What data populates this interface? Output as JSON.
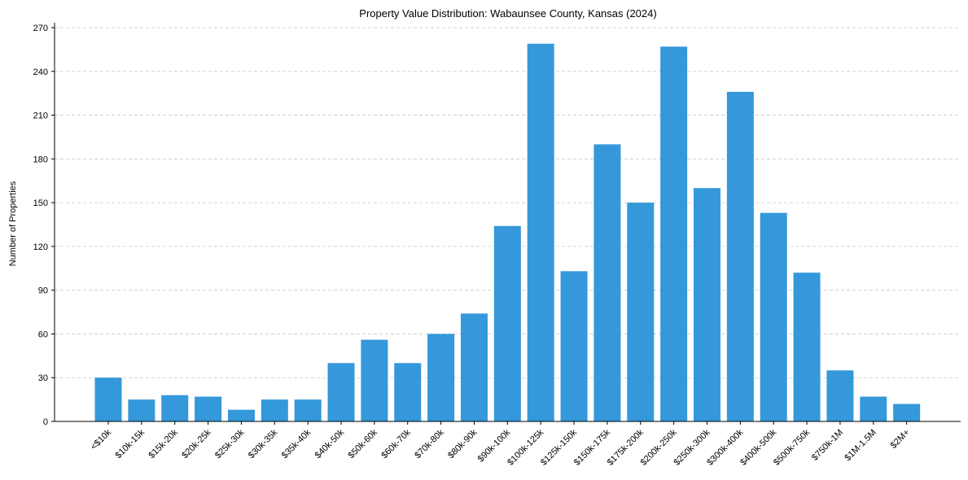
{
  "chart_data": {
    "type": "bar",
    "title": "Property Value Distribution: Wabaunsee County, Kansas (2024)",
    "xlabel": "",
    "ylabel": "Number of Properties",
    "ylim": [
      0,
      270
    ],
    "yticks": [
      0,
      30,
      60,
      90,
      120,
      150,
      180,
      210,
      240,
      270
    ],
    "grid": "y-dashed",
    "bar_color": "#3498db",
    "categories": [
      "<$10k",
      "$10k-15k",
      "$15k-20k",
      "$20k-25k",
      "$25k-30k",
      "$30k-35k",
      "$35k-40k",
      "$40k-50k",
      "$50k-60k",
      "$60k-70k",
      "$70k-80k",
      "$80k-90k",
      "$90k-100k",
      "$100k-125k",
      "$125k-150k",
      "$150k-175k",
      "$175k-200k",
      "$200k-250k",
      "$250k-300k",
      "$300k-400k",
      "$400k-500k",
      "$500k-750k",
      "$750k-1M",
      "$1M-1.5M",
      "$2M+"
    ],
    "values": [
      30,
      15,
      18,
      17,
      8,
      15,
      15,
      40,
      56,
      40,
      60,
      74,
      134,
      259,
      103,
      190,
      150,
      257,
      160,
      226,
      143,
      102,
      35,
      17,
      12
    ]
  }
}
